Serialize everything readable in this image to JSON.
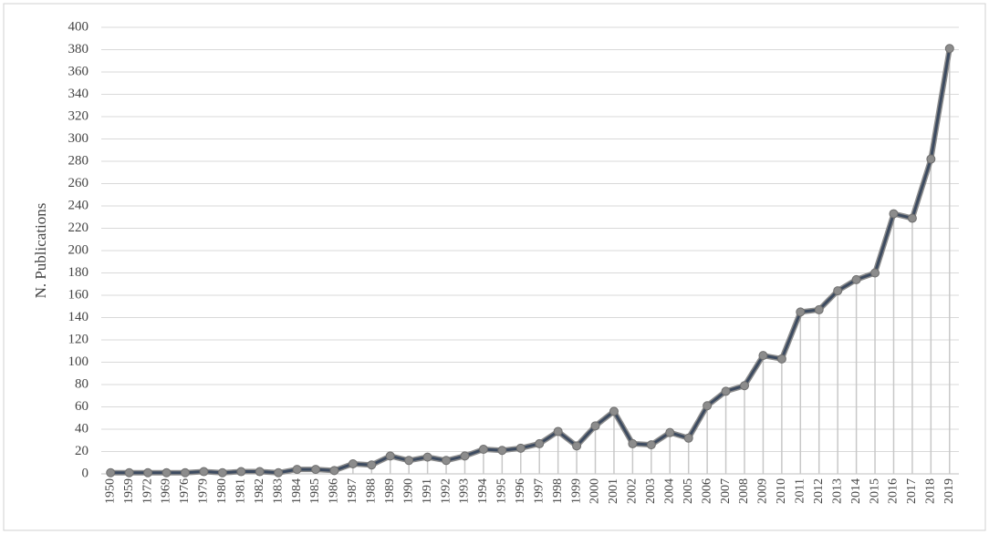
{
  "chart_data": {
    "type": "line",
    "y_label": "N. Publications",
    "categories": [
      "1950",
      "1959",
      "1972",
      "1969",
      "1976",
      "1979",
      "1980",
      "1981",
      "1982",
      "1983",
      "1984",
      "1985",
      "1986",
      "1987",
      "1988",
      "1989",
      "1990",
      "1991",
      "1992",
      "1993",
      "1994",
      "1995",
      "1996",
      "1997",
      "1998",
      "1999",
      "2000",
      "2001",
      "2002",
      "2003",
      "2004",
      "2005",
      "2006",
      "2007",
      "2008",
      "2009",
      "2010",
      "2011",
      "2012",
      "2013",
      "2014",
      "2015",
      "2016",
      "2017",
      "2018",
      "2019"
    ],
    "values": [
      1,
      1,
      1,
      1,
      1,
      2,
      1,
      2,
      2,
      1,
      4,
      4,
      3,
      9,
      8,
      16,
      12,
      15,
      12,
      16,
      22,
      21,
      23,
      27,
      38,
      25,
      43,
      56,
      27,
      26,
      37,
      32,
      61,
      74,
      79,
      106,
      103,
      145,
      147,
      164,
      174,
      180,
      233,
      229,
      282,
      381
    ],
    "color": "#3d4b60",
    "marker_color": "#8c8c8c",
    "ylim": [
      0,
      400
    ],
    "yticks": [
      0,
      20,
      40,
      60,
      80,
      100,
      120,
      140,
      160,
      180,
      200,
      220,
      240,
      260,
      280,
      300,
      320,
      340,
      360,
      380,
      400
    ],
    "grid": true,
    "drop_lines": true
  }
}
